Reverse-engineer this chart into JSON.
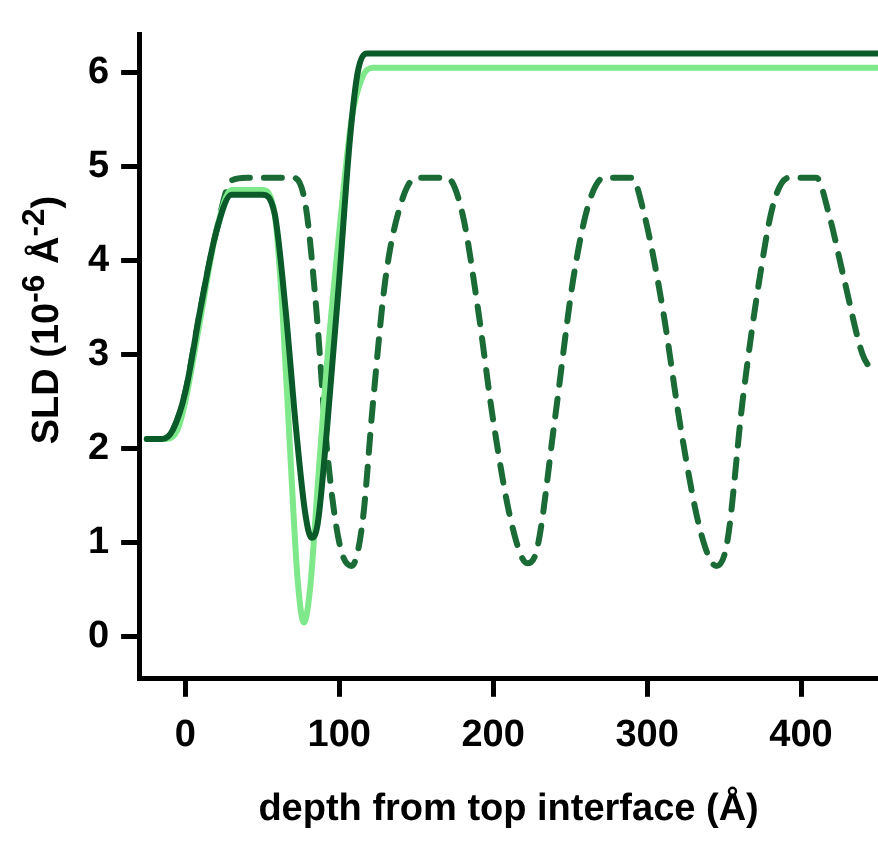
{
  "chart_data": {
    "type": "line",
    "xlabel": "depth from top interface (Å)",
    "ylabel": "SLD (10$^{-6}$ Å$^{-2}$)",
    "xlim": [
      -30,
      450
    ],
    "xticks": [
      0,
      100,
      200,
      300,
      400
    ],
    "ylim": [
      -0.45,
      6.4
    ],
    "yticks": [
      0,
      1,
      2,
      3,
      4,
      5,
      6
    ],
    "grid": false,
    "legend": false,
    "marker": "none",
    "series": [
      {
        "color": "#0b5a2a",
        "line_style": "solid",
        "x": [
          -25,
          -15,
          -8,
          0,
          10,
          20,
          30,
          50,
          58,
          65,
          72,
          78,
          82,
          86,
          92,
          100,
          107,
          112,
          118,
          450
        ],
        "values": [
          2.1,
          2.1,
          2.2,
          2.6,
          3.5,
          4.3,
          4.7,
          4.7,
          4.5,
          3.5,
          2.2,
          1.3,
          1.05,
          1.2,
          2.2,
          3.8,
          5.3,
          6.0,
          6.2,
          6.2
        ]
      },
      {
        "color": "#7ee88a",
        "line_style": "solid",
        "x": [
          -25,
          -12,
          -5,
          0,
          10,
          20,
          30,
          50,
          58,
          63,
          68,
          73,
          77,
          81,
          86,
          92,
          100,
          108,
          115,
          122,
          450
        ],
        "values": [
          2.1,
          2.1,
          2.2,
          2.5,
          3.4,
          4.3,
          4.75,
          4.75,
          4.5,
          3.5,
          2.0,
          0.6,
          0.15,
          0.5,
          1.6,
          2.9,
          4.3,
          5.5,
          5.95,
          6.05,
          6.05
        ]
      },
      {
        "color": "#1a6b35",
        "line_style": "dashed",
        "x": [
          -25,
          -15,
          -8,
          0,
          10,
          20,
          30,
          40,
          70,
          78,
          85,
          92,
          100,
          108,
          115,
          122,
          130,
          140,
          150,
          170,
          180,
          190,
          200,
          212,
          222,
          228,
          240,
          252,
          262,
          272,
          290,
          298,
          310,
          322,
          335,
          345,
          352,
          362,
          373,
          382,
          392,
          410,
          418,
          428,
          440,
          448
        ],
        "values": [
          2.1,
          2.1,
          2.2,
          2.6,
          3.5,
          4.3,
          4.85,
          4.88,
          4.88,
          4.6,
          3.5,
          2.0,
          1.0,
          0.75,
          1.2,
          2.5,
          3.8,
          4.6,
          4.88,
          4.88,
          4.5,
          3.5,
          2.3,
          1.2,
          0.78,
          0.9,
          2.3,
          3.8,
          4.6,
          4.88,
          4.88,
          4.5,
          3.5,
          2.2,
          1.1,
          0.75,
          1.0,
          2.5,
          3.8,
          4.6,
          4.88,
          4.88,
          4.5,
          3.8,
          3.0,
          2.8
        ]
      }
    ]
  }
}
